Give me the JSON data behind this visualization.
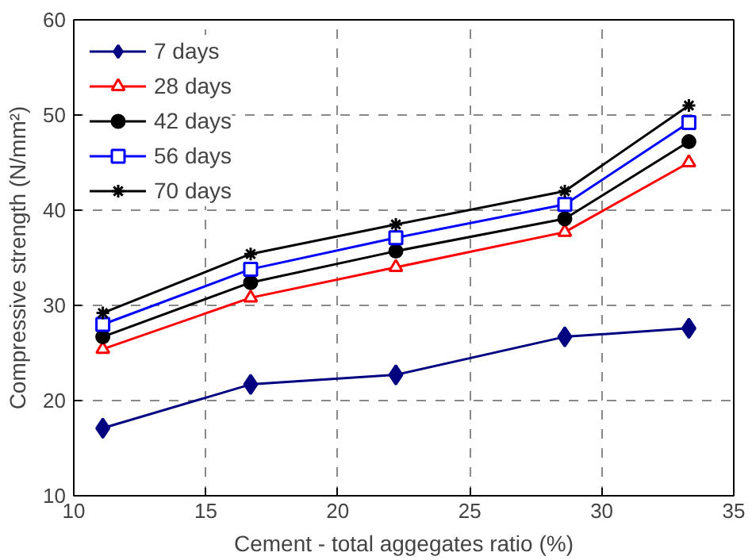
{
  "chart_data": {
    "type": "line",
    "xlabel": "Cement - total aggegates ratio (%)",
    "ylabel": "Compressive strength (N/mm²)",
    "x": [
      11.1,
      16.7,
      22.2,
      28.6,
      33.3
    ],
    "series": [
      {
        "name": "7 days",
        "color": "#000080",
        "marker": "diamond",
        "values": [
          17.1,
          21.7,
          22.7,
          26.7,
          27.6
        ]
      },
      {
        "name": "28 days",
        "color": "#ff0000",
        "marker": "triangle",
        "values": [
          25.4,
          30.8,
          34.0,
          37.7,
          45.0
        ]
      },
      {
        "name": "42 days",
        "color": "#000000",
        "marker": "circle",
        "values": [
          26.7,
          32.4,
          35.7,
          39.1,
          47.2
        ]
      },
      {
        "name": "56 days",
        "color": "#0000ff",
        "marker": "square",
        "values": [
          28.0,
          33.8,
          37.1,
          40.6,
          49.2
        ]
      },
      {
        "name": "70 days",
        "color": "#000000",
        "marker": "cross",
        "values": [
          29.2,
          35.4,
          38.5,
          42.0,
          51.0
        ]
      }
    ],
    "xlim": [
      10,
      35
    ],
    "xticks": [
      10,
      15,
      20,
      25,
      30,
      35
    ],
    "ylim": [
      10,
      60
    ],
    "yticks": [
      10,
      20,
      30,
      40,
      50,
      60
    ],
    "grid": true,
    "legend": "top left",
    "line_style": "solid"
  }
}
